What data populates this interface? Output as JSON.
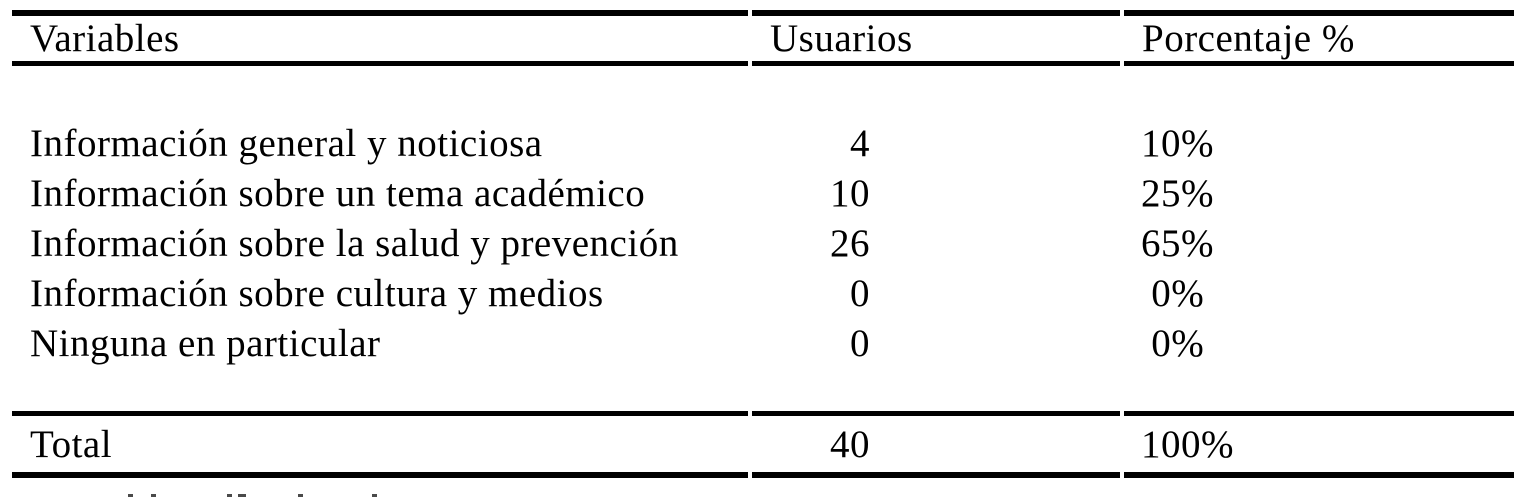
{
  "table": {
    "columns": [
      {
        "label": "Variables"
      },
      {
        "label": "Usuarios"
      },
      {
        "label": "Porcentaje %"
      }
    ],
    "rows": [
      {
        "variable": "Información general y noticiosa",
        "usuarios": "4",
        "porcentaje": "10%"
      },
      {
        "variable": "Información sobre un tema académico",
        "usuarios": "10",
        "porcentaje": "25%"
      },
      {
        "variable": "Información sobre la salud y prevención",
        "usuarios": "26",
        "porcentaje": "65%"
      },
      {
        "variable": "Información sobre cultura y medios",
        "usuarios": "0",
        "porcentaje": " 0%"
      },
      {
        "variable": "Ninguna en particular",
        "usuarios": "0",
        "porcentaje": " 0%"
      }
    ],
    "total": {
      "label": "Total",
      "usuarios": "40",
      "porcentaje": "100%"
    }
  },
  "colors": {
    "text": "#000000",
    "background": "#ffffff",
    "rule": "#000000"
  }
}
